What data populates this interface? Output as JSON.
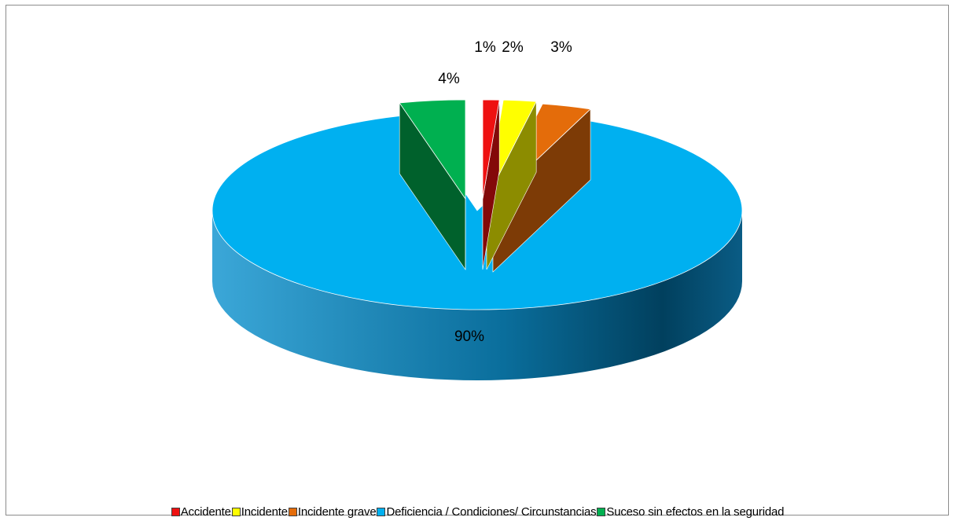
{
  "chart_data": {
    "type": "pie",
    "style": "3d-exploded",
    "series": [
      {
        "name": "",
        "values": [
          {
            "category": "Accidente",
            "value": 1,
            "label": "1%",
            "color": "#ee1111"
          },
          {
            "category": "Incidente",
            "value": 2,
            "label": "2%",
            "color": "#ffff00"
          },
          {
            "category": "Incidente grave",
            "value": 3,
            "label": "3%",
            "color": "#e46c0a"
          },
          {
            "category": "Deficiencia / Condiciones/ Circunstancias",
            "value": 90,
            "label": "90%",
            "color": "#00b0f0"
          },
          {
            "category": "Suceso sin efectos en la seguridad",
            "value": 4,
            "label": "4%",
            "color": "#00b050"
          }
        ]
      }
    ],
    "legend_position": "bottom",
    "title": ""
  }
}
